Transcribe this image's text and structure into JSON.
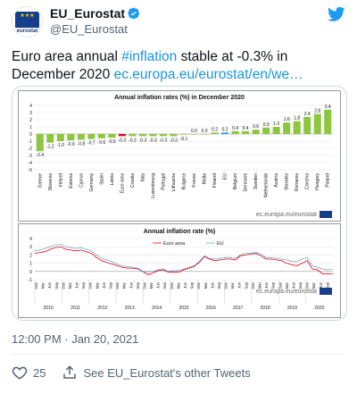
{
  "account": {
    "name": "EU_Eurostat",
    "handle": "@EU_Eurostat",
    "avatar_text": "eurostat"
  },
  "tweet": {
    "text_before": "Euro area annual ",
    "hashtag": "#inflation",
    "text_after": " stable at -0.3% in December 2020 ",
    "link": "ec.europa.eu/eurostat/en/we…"
  },
  "timestamp": "12:00 PM · Jan 20, 2021",
  "actions": {
    "likes": "25",
    "other_tweets": "See EU_Eurostat's other Tweets"
  },
  "colors": {
    "accent": "#1b95e0",
    "bar_green": "#8dc63f",
    "bar_red": "#e30613",
    "bar_blue": "#1f9bd7",
    "eurostat_blue": "#163f8b"
  },
  "icons": {
    "verified": "verified-badge-icon",
    "twitter": "twitter-bird-icon",
    "heart": "heart-icon",
    "share": "share-icon"
  },
  "chart_data": [
    {
      "type": "bar",
      "title": "Annual inflation rates (%) in December 2020",
      "source": "ec.europa.eu/eurostat",
      "categories": [
        "Greece",
        "Slovenia",
        "Ireland",
        "Estonia",
        "Cyprus",
        "Germany",
        "Spain",
        "Latvia",
        "Euro area",
        "Croatia",
        "Italy",
        "Luxembourg",
        "Portugal",
        "Lithuania",
        "Bulgaria",
        "France",
        "Malta",
        "Finland",
        "EU",
        "Belgium",
        "Denmark",
        "Sweden",
        "Netherlands",
        "Austria",
        "Slovakia",
        "Romania",
        "Czechia",
        "Hungary",
        "Poland"
      ],
      "values": [
        -2.4,
        -1.2,
        -1.0,
        -0.9,
        -0.8,
        -0.7,
        -0.6,
        -0.5,
        -0.3,
        -0.3,
        -0.3,
        -0.3,
        -0.3,
        -0.3,
        -0.1,
        0.0,
        0.0,
        0.2,
        0.2,
        0.4,
        0.4,
        0.6,
        0.9,
        1.0,
        1.6,
        1.8,
        2.4,
        2.8,
        3.4
      ],
      "ylim": [
        -5,
        4
      ],
      "yticks": [
        4,
        3,
        2,
        1,
        0,
        -1,
        -2,
        -3,
        -4,
        -5
      ]
    },
    {
      "type": "line",
      "title": "Annual inflation rate (%)",
      "source": "ec.europa.eu/eurostat",
      "years": [
        "2010",
        "2011",
        "2012",
        "2013",
        "2014",
        "2015",
        "2016",
        "2017",
        "2018",
        "2019",
        "2020"
      ],
      "month_ticks": [
        "Dec",
        "Mar",
        "Jun",
        "Sep"
      ],
      "ylim": [
        -1,
        4
      ],
      "yticks": [
        4,
        3,
        2,
        1,
        0,
        -1
      ],
      "series": [
        {
          "name": "Euro area",
          "values": [
            2.2,
            2.3,
            2.4,
            2.7,
            2.9,
            3.0,
            2.7,
            2.6,
            2.5,
            2.6,
            2.4,
            2.2,
            1.7,
            1.3,
            1.1,
            0.9,
            0.7,
            0.5,
            0.4,
            0.4,
            0.3,
            0.0,
            -0.4,
            -0.2,
            0.1,
            0.2,
            -0.1,
            -0.1,
            -0.1,
            0.2,
            0.4,
            0.6,
            1.1,
            1.8,
            1.5,
            1.3,
            1.4,
            1.5,
            1.5,
            1.4,
            1.9,
            2.0,
            2.1,
            2.2,
            1.9,
            1.5,
            1.5,
            1.4,
            1.3,
            1.0,
            0.8,
            0.7,
            1.0,
            1.3,
            0.3,
            0.2,
            -0.3,
            -0.3,
            -0.3
          ]
        },
        {
          "name": "EU",
          "values": [
            2.5,
            2.6,
            2.8,
            3.0,
            3.2,
            3.3,
            3.0,
            2.9,
            2.8,
            2.9,
            2.7,
            2.5,
            2.0,
            1.6,
            1.4,
            1.2,
            0.9,
            0.7,
            0.6,
            0.5,
            0.4,
            0.0,
            -0.1,
            0.0,
            0.2,
            0.3,
            0.0,
            0.1,
            0.1,
            0.3,
            0.5,
            0.7,
            1.2,
            1.9,
            1.6,
            1.5,
            1.6,
            1.7,
            1.7,
            1.6,
            2.0,
            2.2,
            2.2,
            2.3,
            2.1,
            1.7,
            1.7,
            1.6,
            1.5,
            1.4,
            1.2,
            1.2,
            1.5,
            1.7,
            0.7,
            0.5,
            0.3,
            0.2,
            0.3
          ]
        }
      ]
    }
  ]
}
